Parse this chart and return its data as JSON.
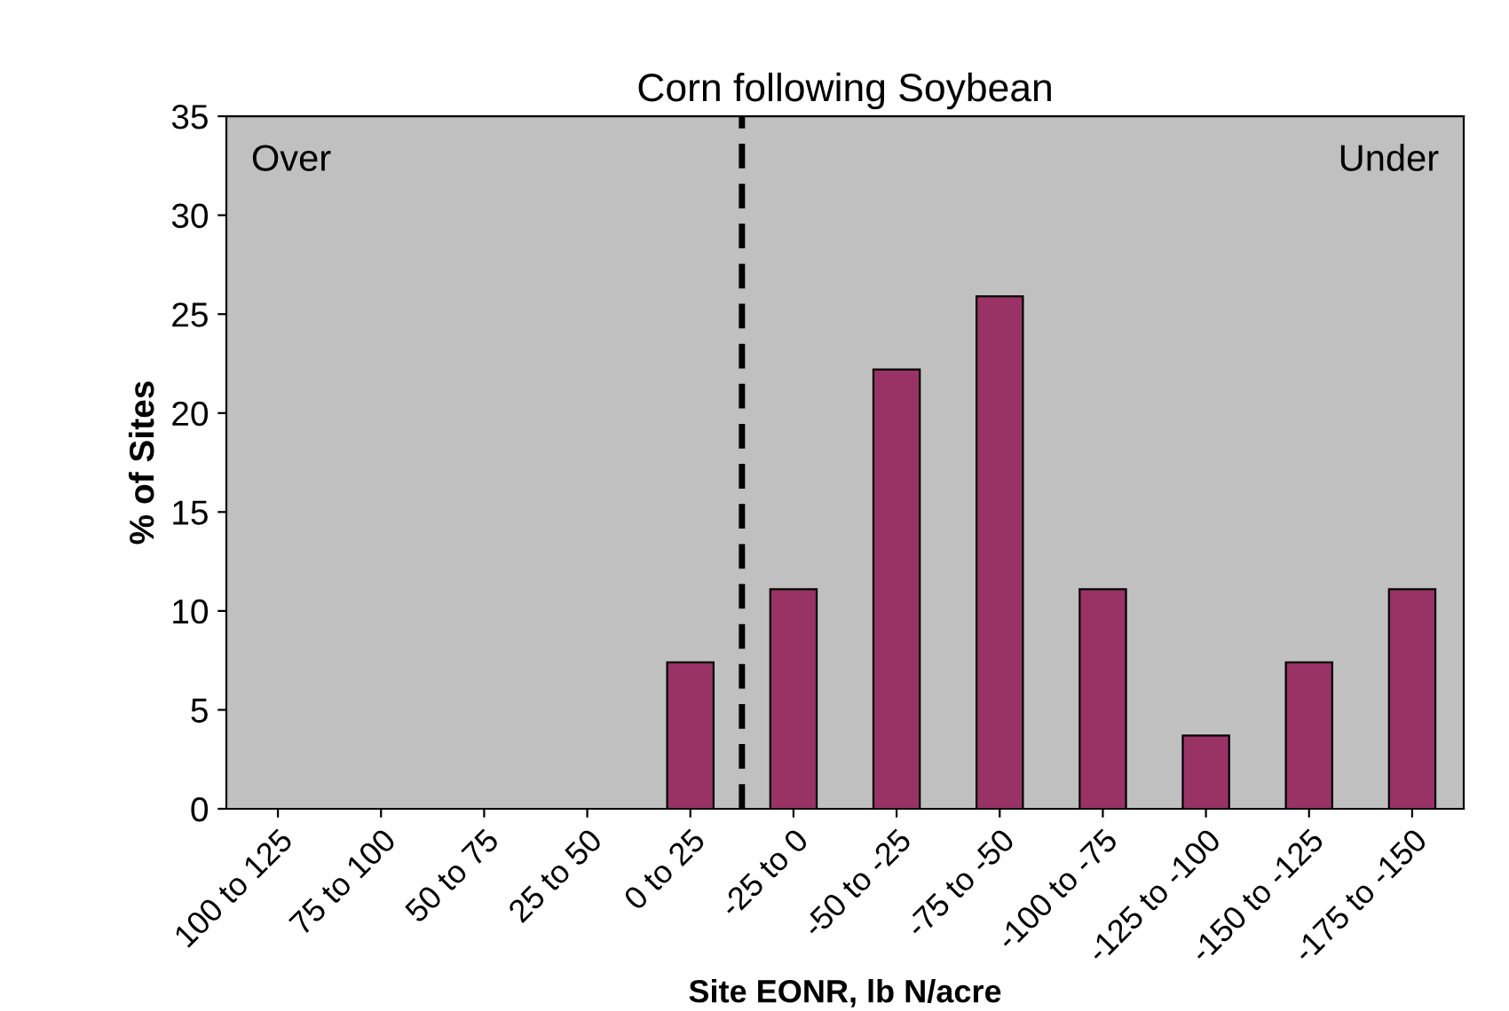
{
  "chart_data": {
    "type": "bar",
    "title": "Corn following Soybean",
    "xlabel": "Site EONR, lb N/acre",
    "ylabel": "% of Sites",
    "categories": [
      "100 to 125",
      "75 to 100",
      "50 to 75",
      "25 to 50",
      "0 to 25",
      "-25 to 0",
      "-50 to -25",
      "-75 to -50",
      "-100 to -75",
      "-125 to -100",
      "-150 to -125",
      "-175 to -150"
    ],
    "values": [
      0,
      0,
      0,
      0,
      7.4,
      11.1,
      22.2,
      25.9,
      11.1,
      3.7,
      7.4,
      11.1
    ],
    "color": "#993366",
    "ylim": [
      0,
      35
    ],
    "yticks": [
      0,
      5,
      10,
      15,
      20,
      25,
      30,
      35
    ],
    "annotations": [
      "Over",
      "Under"
    ],
    "grid": false,
    "legend": false
  }
}
